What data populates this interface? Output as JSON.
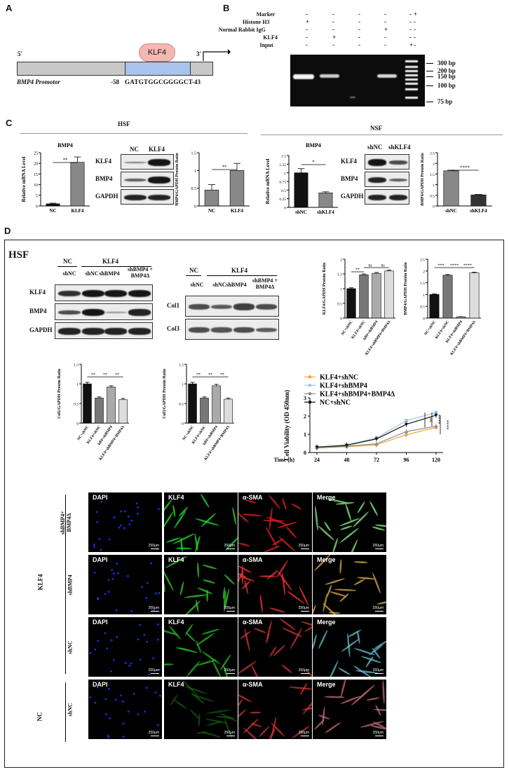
{
  "panels": {
    "a": "A",
    "b": "B",
    "c": "C",
    "d": "D"
  },
  "panelA": {
    "five": "5'",
    "three": "3'",
    "klf4": "KLF4",
    "promoter": "BMP4 Promotor",
    "start": "-58",
    "seq": "GATGTGGCGGGGCT",
    "end": "-43"
  },
  "panelB": {
    "rows": [
      {
        "label": "Marker",
        "marks": [
          "-",
          "-",
          "-",
          "-",
          "-",
          "+"
        ]
      },
      {
        "label": "Histone H3",
        "marks": [
          "+",
          "-",
          "-",
          "-",
          "-",
          "-"
        ]
      },
      {
        "label": "Normal Rabbit IgG",
        "marks": [
          "-",
          "-",
          "-",
          "+",
          "-",
          "-"
        ]
      },
      {
        "label": "KLF4",
        "marks": [
          "-",
          "+",
          "-",
          "-",
          "-",
          "-"
        ]
      },
      {
        "label": "Input",
        "marks": [
          "-",
          "-",
          "-",
          "-",
          "+",
          "-"
        ]
      }
    ],
    "sizes": [
      "300 bp",
      "200 bp",
      "150 bp",
      "100 bp",
      "75 bp"
    ]
  },
  "panelC": {
    "hsf": "HSF",
    "nsf": "NSF",
    "hsf_mrna": {
      "title": "BMP4",
      "ylabel": "Relative mRNA Level",
      "sig": "**"
    },
    "hsf_ratio": {
      "ylabel": "BMP4/GAPDH Protein Ratio",
      "sig": "**"
    },
    "nsf_mrna": {
      "title": "BMP4",
      "ylabel": "Relative mRNA Level",
      "sig": "*"
    },
    "nsf_ratio": {
      "ylabel": "BMP4/GAPDH Protein Ratio",
      "sig": "****"
    },
    "hsf_blot": {
      "cols": [
        "NC",
        "KLF4"
      ],
      "rows": [
        "KLF4",
        "BMP4",
        "GAPDH"
      ]
    },
    "nsf_blot": {
      "cols": [
        "shNC",
        "shKLF4"
      ],
      "rows": [
        "KLF4",
        "BMP4",
        "GAPDH"
      ]
    }
  },
  "panelD": {
    "hsf": "HSF",
    "blot1": {
      "groupNC": "NC",
      "groupKLF4": "KLF4",
      "cols": [
        "shNC",
        "shNC",
        "shBMP4",
        "shBMP4 + BMP4Δ"
      ],
      "rows": [
        "KLF4",
        "BMP4",
        "GAPDH"
      ]
    },
    "blot2": {
      "groupNC": "NC",
      "groupKLF4": "KLF4",
      "cols": [
        "shNC",
        "shNC",
        "shBMP4",
        "shBMP4 + BMP4Δ"
      ],
      "rows": [
        "Col1",
        "Col3"
      ]
    },
    "klf4_ratio": {
      "ylabel": "KLF4/GAPDH Protein Ratio",
      "sigs": [
        "**",
        "ns",
        "ns"
      ]
    },
    "bmp4_ratio": {
      "ylabel": "BMP4/GAPDH Protein Ratio",
      "sigs": [
        "***",
        "****",
        "****"
      ]
    },
    "col1_ratio": {
      "ylabel": "Col1/GAPDH Protein Ratio",
      "sigs": [
        "**",
        "**",
        "**"
      ]
    },
    "col3_ratio": {
      "ylabel": "Col3/GAPDH Protein Ratio",
      "sigs": [
        "**",
        "**",
        "**"
      ]
    },
    "ratio_xlabels_a": [
      "NC+shNC",
      "KLF4+shNC",
      "klf4+shBMP4",
      "KLF4+shBMP4+BMP4Δ"
    ],
    "ratio_xlabels_b": [
      "NC+shNC",
      "KLF4+shNC",
      "klf4+shBMP4",
      "KLF4+shBMP4+BMP4Δ"
    ],
    "viability": {
      "ylabel": "Cell Viability (OD 450nm)",
      "xlabel": "Time (h)",
      "sigs": [
        "ns",
        "****",
        "****"
      ]
    },
    "micro_cols": [
      "DAPI",
      "KLF4",
      "α-SMA",
      "Merge"
    ],
    "micro_rows": [
      "shBMP4+ BMP4Δ",
      "shBMP4",
      "shNC",
      "shNC"
    ],
    "group_klf4": "KLF4",
    "group_nc": "NC",
    "scalebar": "250μm"
  },
  "chart_data": [
    {
      "type": "bar",
      "id": "hsf_mrna",
      "categories": [
        "NC",
        "KLF4"
      ],
      "values": [
        1,
        20.5
      ],
      "errors": [
        0.3,
        2.5
      ],
      "ylim": [
        0,
        25
      ],
      "yticks": [
        0,
        5,
        10,
        15,
        20,
        25
      ],
      "colors": [
        "#111111",
        "#888888"
      ]
    },
    {
      "type": "bar",
      "id": "hsf_ratio",
      "categories": [
        "NC",
        "KLF4"
      ],
      "values": [
        0.45,
        1.0
      ],
      "errors": [
        0.15,
        0.2
      ],
      "ylim": [
        0,
        1.5
      ],
      "yticks": [
        0,
        0.5,
        1.0,
        1.5
      ],
      "colors": [
        "#888888",
        "#888888"
      ]
    },
    {
      "type": "bar",
      "id": "nsf_mrna",
      "categories": [
        "shNC",
        "shKLF4"
      ],
      "values": [
        1.0,
        0.42
      ],
      "errors": [
        0.12,
        0.03
      ],
      "ylim": [
        0,
        1.5
      ],
      "yticks": [
        0,
        0.25,
        0.5,
        0.75,
        1.0,
        1.25,
        1.5
      ],
      "colors": [
        "#111111",
        "#888888"
      ]
    },
    {
      "type": "bar",
      "id": "nsf_ratio",
      "categories": [
        "shNC",
        "shKLF4"
      ],
      "values": [
        1.65,
        0.52
      ],
      "errors": [
        0.03,
        0.02
      ],
      "ylim": [
        0,
        2.5
      ],
      "yticks": [
        0,
        0.5,
        1.0,
        1.5,
        2.0,
        2.5
      ],
      "colors": [
        "#888888",
        "#333333"
      ]
    },
    {
      "type": "bar",
      "id": "klf4_ratio",
      "categories": [
        "NC+shNC",
        "KLF4+shNC",
        "klf4+shBMP4",
        "KLF4+shBMP4+BMP4Δ"
      ],
      "values": [
        1.0,
        1.47,
        1.52,
        1.6
      ],
      "errors": [
        0.03,
        0.03,
        0.03,
        0.03
      ],
      "ylim": [
        0,
        2.0
      ],
      "yticks": [
        0,
        0.5,
        1.0,
        1.5,
        2.0
      ],
      "colors": [
        "#111111",
        "#777777",
        "#aaaaaa",
        "#dddddd"
      ]
    },
    {
      "type": "bar",
      "id": "bmp4_ratio",
      "categories": [
        "NC+shNC",
        "KLF4+shNC",
        "KLF4+shBMP4",
        "KLF4+shBMP4+BMP4Δ"
      ],
      "values": [
        1.0,
        1.82,
        0.05,
        1.92
      ],
      "errors": [
        0.03,
        0.03,
        0.01,
        0.03
      ],
      "ylim": [
        0,
        2.5
      ],
      "yticks": [
        0,
        0.5,
        1.0,
        1.5,
        2.0,
        2.5
      ],
      "colors": [
        "#111111",
        "#777777",
        "#aaaaaa",
        "#dddddd"
      ]
    },
    {
      "type": "bar",
      "id": "col1_ratio",
      "categories": [
        "NC+shNC",
        "KLF4+shNC",
        "klf4+shBMP4",
        "KLF4+shBMP4+BMP4Δ"
      ],
      "values": [
        1.0,
        0.64,
        0.92,
        0.6
      ],
      "errors": [
        0.04,
        0.03,
        0.03,
        0.03
      ],
      "ylim": [
        0,
        1.5
      ],
      "yticks": [
        0,
        0.5,
        1.0,
        1.5
      ],
      "colors": [
        "#111111",
        "#777777",
        "#aaaaaa",
        "#dddddd"
      ]
    },
    {
      "type": "bar",
      "id": "col3_ratio",
      "categories": [
        "NC+shNC",
        "KLF4+shNC",
        "klf4+shBMP4",
        "KLF4+shBMP4+BMP4Δ"
      ],
      "values": [
        1.0,
        0.64,
        0.95,
        0.61
      ],
      "errors": [
        0.04,
        0.03,
        0.04,
        0.03
      ],
      "ylim": [
        0,
        1.5
      ],
      "yticks": [
        0,
        0.5,
        1.0,
        1.5
      ],
      "colors": [
        "#111111",
        "#777777",
        "#aaaaaa",
        "#dddddd"
      ]
    },
    {
      "type": "line",
      "id": "viability",
      "x": [
        24,
        48,
        72,
        96,
        120
      ],
      "ylim": [
        0,
        3
      ],
      "yticks": [
        0,
        1,
        2,
        3
      ],
      "series": [
        {
          "name": "KLF4+shNC",
          "values": [
            0.25,
            0.32,
            0.42,
            0.98,
            1.38
          ],
          "color": "#f2a33a",
          "marker": "circle"
        },
        {
          "name": "KLF4+shBMP4",
          "values": [
            0.28,
            0.42,
            0.8,
            1.75,
            2.2
          ],
          "color": "#9cc3e8",
          "marker": "square"
        },
        {
          "name": "KLF4+shBMP4+BMP4Δ",
          "values": [
            0.27,
            0.35,
            0.48,
            1.15,
            1.45
          ],
          "color": "#8a8a8a",
          "marker": "triangle"
        },
        {
          "name": "NC+shNC",
          "values": [
            0.3,
            0.4,
            0.75,
            1.55,
            2.05
          ],
          "color": "#111111",
          "marker": "triangle-down"
        }
      ]
    }
  ]
}
